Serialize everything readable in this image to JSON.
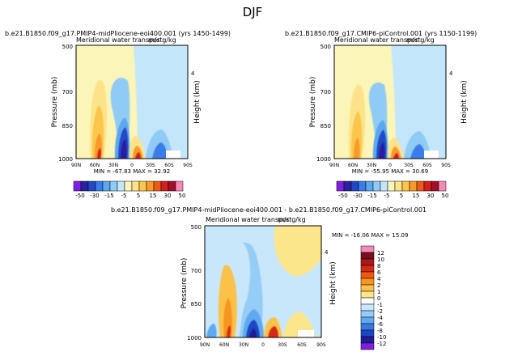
{
  "figure_title": "DJF",
  "chart_data": [
    {
      "type": "heatmap",
      "title": "b.e21.B1850.f09_g17.PMIP4-midPliocene-eoi400.001 (yrs 1450-1499)",
      "subtitle": "Meridional water transport",
      "units": "m/s g/kg",
      "xlabel": "",
      "ylabel": "Pressure (mb)",
      "ylabel_right": "Height (km)",
      "x_ticks": [
        "90N",
        "60N",
        "30N",
        "0",
        "30S",
        "60S",
        "90S"
      ],
      "y_ticks": [
        "500",
        "700",
        "850",
        "1000"
      ],
      "y_right_ticks": [
        "4"
      ],
      "ylim": [
        1000,
        500
      ],
      "stats_text": "MIN = -67.83   MAX = 32.92",
      "min": -67.83,
      "max": 32.92,
      "colorbar_labels": [
        "-50",
        "-30",
        "-15",
        "-5",
        "5",
        "15",
        "30",
        "50"
      ]
    },
    {
      "type": "heatmap",
      "title": "b.e21.B1850.f09_g17.CMIP6-piControl.001 (yrs 1150-1199)",
      "subtitle": "Meridional water transport",
      "units": "m/s g/kg",
      "xlabel": "",
      "ylabel": "Pressure (mb)",
      "ylabel_right": "Height (km)",
      "x_ticks": [
        "90N",
        "60N",
        "30N",
        "0",
        "30S",
        "60S",
        "90S"
      ],
      "y_ticks": [
        "500",
        "700",
        "850",
        "1000"
      ],
      "y_right_ticks": [
        "4"
      ],
      "ylim": [
        1000,
        500
      ],
      "stats_text": "MIN = -55.95   MAX = 30.69",
      "min": -55.95,
      "max": 30.69,
      "colorbar_labels": [
        "-50",
        "-30",
        "-15",
        "-5",
        "5",
        "15",
        "30",
        "50"
      ]
    },
    {
      "type": "heatmap",
      "title": "b.e21.B1850.f09_g17.PMIP4-midPliocene-eoi400.001 - b.e21.B1850.f09_g17.CMIP6-piControl.001",
      "subtitle": "Meridional water transport",
      "units": "m/s g/kg",
      "xlabel": "",
      "ylabel": "Pressure (mb)",
      "ylabel_right": "Height (km)",
      "x_ticks": [
        "90N",
        "60N",
        "30N",
        "0",
        "30S",
        "60S",
        "90S"
      ],
      "y_ticks": [
        "500",
        "700",
        "850",
        "1000"
      ],
      "y_right_ticks": [
        "4"
      ],
      "ylim": [
        1000,
        500
      ],
      "stats_text": "MIN = -16.06   MAX = 15.09",
      "min": -16.06,
      "max": 15.09,
      "colorbar_labels": [
        "12",
        "10",
        "8",
        "6",
        "4",
        "2",
        "1",
        "0",
        "-1",
        "-2",
        "-4",
        "-6",
        "-8",
        "-10",
        "-12"
      ]
    }
  ],
  "colors": {
    "abs_scale": [
      "#7f1fdf",
      "#2c1fa0",
      "#2148c8",
      "#3a7de8",
      "#5aa8f0",
      "#8fcbf5",
      "#c4e6fb",
      "#fbf5b8",
      "#fce38a",
      "#fbc64a",
      "#f79a2c",
      "#ee5a16",
      "#d61e1e",
      "#a10f2a",
      "#f58ab8"
    ],
    "diff_scale": [
      "#f58ab8",
      "#7a0e1e",
      "#a81a1a",
      "#d62a14",
      "#ef5a12",
      "#f7951e",
      "#fbc14a",
      "#fbe68c",
      "#ffffff",
      "#c9e7fb",
      "#95cdf7",
      "#5ea9f0",
      "#357ae4",
      "#1f46c2",
      "#231a99",
      "#7f1fdf"
    ]
  }
}
